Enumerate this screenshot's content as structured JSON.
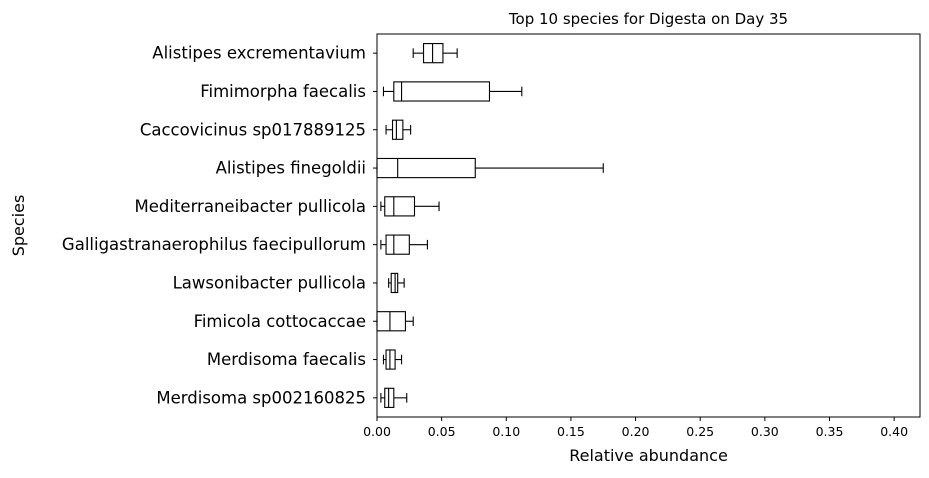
{
  "chart_data": {
    "type": "boxplot",
    "orientation": "horizontal",
    "title": "Top 10 species for Digesta on Day 35",
    "xlabel": "Relative abundance",
    "ylabel": "Species",
    "xlim": [
      0,
      0.42
    ],
    "xticks": [
      "0.00",
      "0.05",
      "0.10",
      "0.15",
      "0.20",
      "0.25",
      "0.30",
      "0.35",
      "0.40"
    ],
    "xtick_values": [
      0,
      0.05,
      0.1,
      0.15,
      0.2,
      0.25,
      0.3,
      0.35,
      0.4
    ],
    "grid": false,
    "legend": "none",
    "box_color": "#000000",
    "background_color": "#ffffff",
    "categories": [
      "Alistipes excrementavium",
      "Fimimorpha faecalis",
      "Caccovicinus sp017889125",
      "Alistipes finegoldii",
      "Mediterraneibacter pullicola",
      "Galligastranaerophilus faecipullorum",
      "Lawsonibacter pullicola",
      "Fimicola cottocaccae",
      "Merdisoma faecalis",
      "Merdisoma sp002160825"
    ],
    "boxes": [
      {
        "whislo": 0.028,
        "q1": 0.036,
        "med": 0.043,
        "q3": 0.051,
        "whishi": 0.062
      },
      {
        "whislo": 0.005,
        "q1": 0.013,
        "med": 0.019,
        "q3": 0.087,
        "whishi": 0.112
      },
      {
        "whislo": 0.007,
        "q1": 0.012,
        "med": 0.015,
        "q3": 0.02,
        "whishi": 0.026
      },
      {
        "whislo": 0.0,
        "q1": 0.0,
        "med": 0.016,
        "q3": 0.076,
        "whishi": 0.175
      },
      {
        "whislo": 0.003,
        "q1": 0.006,
        "med": 0.013,
        "q3": 0.029,
        "whishi": 0.048
      },
      {
        "whislo": 0.003,
        "q1": 0.007,
        "med": 0.013,
        "q3": 0.025,
        "whishi": 0.039
      },
      {
        "whislo": 0.009,
        "q1": 0.011,
        "med": 0.014,
        "q3": 0.016,
        "whishi": 0.021
      },
      {
        "whislo": 0.0,
        "q1": 0.0,
        "med": 0.01,
        "q3": 0.022,
        "whishi": 0.028
      },
      {
        "whislo": 0.005,
        "q1": 0.007,
        "med": 0.01,
        "q3": 0.014,
        "whishi": 0.019
      },
      {
        "whislo": 0.003,
        "q1": 0.006,
        "med": 0.009,
        "q3": 0.013,
        "whishi": 0.023
      }
    ]
  }
}
